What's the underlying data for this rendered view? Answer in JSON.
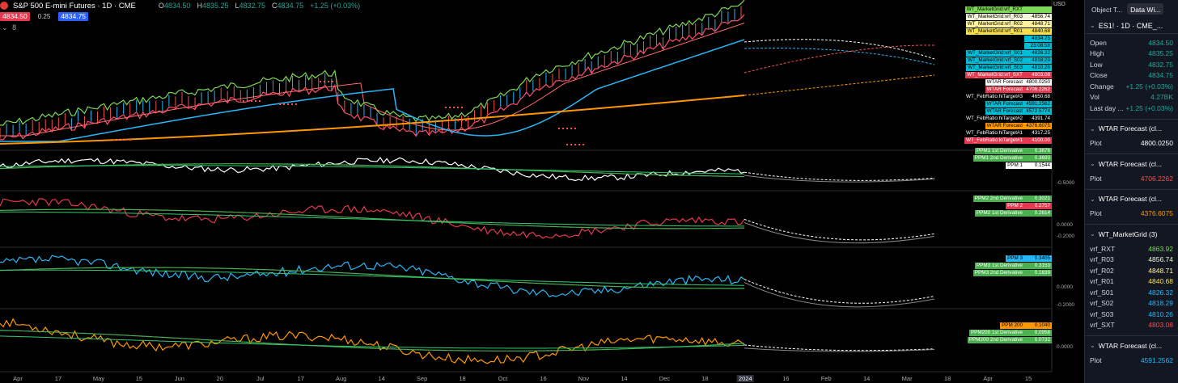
{
  "header": {
    "symbol_title": "S&P 500 E-mini Futures · 1D · CME",
    "ohlc": [
      {
        "label": "O",
        "value": "4834.50"
      },
      {
        "label": "H",
        "value": "4835.25"
      },
      {
        "label": "L",
        "value": "4832.75"
      },
      {
        "label": "C",
        "value": "4834.75"
      },
      {
        "label": "",
        "value": "+1.25 (+0.03%)"
      }
    ],
    "sell_price": "4834.50",
    "spread": "0.25",
    "buy_price": "4834.75",
    "indicator_toggle": "8",
    "currency": "USD"
  },
  "price_tags": [
    {
      "text": "WT_MarketGrid:vrf_RXT",
      "value": "",
      "bg": "#7ed957",
      "fg": "#000"
    },
    {
      "text": "WT_MarketGrid:vrf_R03",
      "value": "4856.74",
      "bg": "#f5f5dc",
      "fg": "#000"
    },
    {
      "text": "WT_MarketGrid:vrf_R02",
      "value": "4848.71",
      "bg": "#fff3a0",
      "fg": "#000"
    },
    {
      "text": "WT_MarketGrid:vrf_R01",
      "value": "4840.68",
      "bg": "#f7e14a",
      "fg": "#000"
    },
    {
      "text": "",
      "value": "4834.75",
      "bg": "#00bcd4",
      "fg": "#000"
    },
    {
      "text": "",
      "value": "23:08:58",
      "bg": "#00bcd4",
      "fg": "#000"
    },
    {
      "text": "WT_MarketGrid:vrf_S01",
      "value": "4826.32",
      "bg": "#00bcd4",
      "fg": "#000"
    },
    {
      "text": "WT_MarketGrid:vrf_S02",
      "value": "4818.29",
      "bg": "#00bcd4",
      "fg": "#000"
    },
    {
      "text": "WT_MarketGrid:vrf_S03",
      "value": "4810.26",
      "bg": "#00bcd4",
      "fg": "#000"
    },
    {
      "text": "WT_MarketGrid:vrf_SXT",
      "value": "4803.08",
      "bg": "#e53950",
      "fg": "#fff"
    },
    {
      "text": "WTAR Forecast",
      "value": "4800.0250",
      "bg": "#ffffff",
      "fg": "#000"
    },
    {
      "text": "WTAR Forecast",
      "value": "4706.2262",
      "bg": "#e53950",
      "fg": "#fff"
    },
    {
      "text": "WT_FebRatio:hiTarget#3",
      "value": "4650.68",
      "bg": "#000000",
      "fg": "#fff"
    },
    {
      "text": "WTAR Forecast",
      "value": "4591.2562",
      "bg": "#00bcd4",
      "fg": "#000"
    },
    {
      "text": "WTAR Forecast",
      "value": "4572.5774",
      "bg": "#00bcd4",
      "fg": "#000"
    },
    {
      "text": "WT_FebRatio:hiTarget#2",
      "value": "4391.74",
      "bg": "#000000",
      "fg": "#fff"
    },
    {
      "text": "WTAR Forecast",
      "value": "4376.6075",
      "bg": "#ff9800",
      "fg": "#000"
    },
    {
      "text": "WT_FebRatio:hiTarget#1",
      "value": "4317.25",
      "bg": "#000000",
      "fg": "#fff"
    },
    {
      "text": "WT_FebRatio:loTarget#1",
      "value": "4100.00",
      "bg": "#e53950",
      "fg": "#fff"
    }
  ],
  "pane1_tags": [
    {
      "text": "PPM1 1st Derivative",
      "value": "0.3676",
      "bg": "#4caf50",
      "fg": "#fff"
    },
    {
      "text": "PPM1 2nd Derivative",
      "value": "0.3693",
      "bg": "#4caf50",
      "fg": "#fff"
    },
    {
      "text": "PPM 1",
      "value": "0.1544",
      "bg": "#ffffff",
      "fg": "#000"
    }
  ],
  "pane1_axis": [
    "-0.5000"
  ],
  "pane2_tags": [
    {
      "text": "PPM2 2nd Derivative",
      "value": "0.3021",
      "bg": "#4caf50",
      "fg": "#fff"
    },
    {
      "text": "PPM 2",
      "value": "0.2757",
      "bg": "#e53950",
      "fg": "#fff"
    },
    {
      "text": "PPM2 1st Derivative",
      "value": "0.2614",
      "bg": "#4caf50",
      "fg": "#fff"
    }
  ],
  "pane2_axis": [
    "0.0000",
    "-0.2000"
  ],
  "pane3_tags": [
    {
      "text": "PPM 3",
      "value": "0.3405",
      "bg": "#29b6f6",
      "fg": "#000"
    },
    {
      "text": "PPM3 1st Derivative",
      "value": "0.3153",
      "bg": "#4caf50",
      "fg": "#fff"
    },
    {
      "text": "PPM3 2nd Derivative",
      "value": "0.1839",
      "bg": "#4caf50",
      "fg": "#fff"
    }
  ],
  "pane3_axis": [
    "0.0000",
    "-0.2000"
  ],
  "pane4_tags": [
    {
      "text": "PPM 200",
      "value": "0.1040",
      "bg": "#ff9800",
      "fg": "#000"
    },
    {
      "text": "PPM200 1st Derivative",
      "value": "0.0958",
      "bg": "#4caf50",
      "fg": "#fff"
    },
    {
      "text": "PPM200 2nd Derivative",
      "value": "0.0732",
      "bg": "#4caf50",
      "fg": "#fff"
    }
  ],
  "pane4_axis": [
    "0.0000"
  ],
  "x_axis": [
    "Apr",
    "17",
    "May",
    "15",
    "Jun",
    "20",
    "Jul",
    "17",
    "Aug",
    "14",
    "Sep",
    "18",
    "Oct",
    "16",
    "Nov",
    "14",
    "Dec",
    "18",
    "2024",
    "16",
    "Feb",
    "14",
    "Mar",
    "18",
    "Apr",
    "15"
  ],
  "panel": {
    "tabs": [
      "Object T...",
      "Data Wi..."
    ],
    "symbol": "ES1! · 1D · CME_...",
    "main_rows": [
      {
        "label": "Open",
        "value": "4834.50",
        "color": "#26a69a"
      },
      {
        "label": "High",
        "value": "4835.25",
        "color": "#26a69a"
      },
      {
        "label": "Low",
        "value": "4832.75",
        "color": "#26a69a"
      },
      {
        "label": "Close",
        "value": "4834.75",
        "color": "#26a69a"
      },
      {
        "label": "Change",
        "value": "+1.25 (+0.03%)",
        "color": "#26a69a"
      },
      {
        "label": "Vol",
        "value": "4.27BK",
        "color": "#26a69a"
      },
      {
        "label": "Last day ...",
        "value": "+1.25 (+0.03%)",
        "color": "#26a69a"
      }
    ],
    "sections": [
      {
        "title": "WTAR Forecast (cl...",
        "rows": [
          {
            "label": "Plot",
            "value": "4800.0250",
            "color": "#ffffff"
          }
        ]
      },
      {
        "title": "WTAR Forecast (cl...",
        "rows": [
          {
            "label": "Plot",
            "value": "4706.2262",
            "color": "#ef5350"
          }
        ]
      },
      {
        "title": "WTAR Forecast (cl...",
        "rows": [
          {
            "label": "Plot",
            "value": "4376.6075",
            "color": "#ff9800"
          }
        ]
      },
      {
        "title": "WT_MarketGrid (3)",
        "rows": [
          {
            "label": "vrf_RXT",
            "value": "4863.92",
            "color": "#7ed957"
          },
          {
            "label": "vrf_R03",
            "value": "4856.74",
            "color": "#f5f5dc"
          },
          {
            "label": "vrf_R02",
            "value": "4848.71",
            "color": "#fff3a0"
          },
          {
            "label": "vrf_R01",
            "value": "4840.68",
            "color": "#f7e14a"
          },
          {
            "label": "vrf_S01",
            "value": "4826.32",
            "color": "#29b6f6"
          },
          {
            "label": "vrf_S02",
            "value": "4818.29",
            "color": "#29b6f6"
          },
          {
            "label": "vrf_S03",
            "value": "4810.26",
            "color": "#29b6f6"
          },
          {
            "label": "vrf_SXT",
            "value": "4803.08",
            "color": "#ef5350"
          }
        ]
      },
      {
        "title": "WTAR Forecast (cl...",
        "rows": [
          {
            "label": "Plot",
            "value": "4591.2562",
            "color": "#29b6f6"
          }
        ]
      }
    ]
  }
}
